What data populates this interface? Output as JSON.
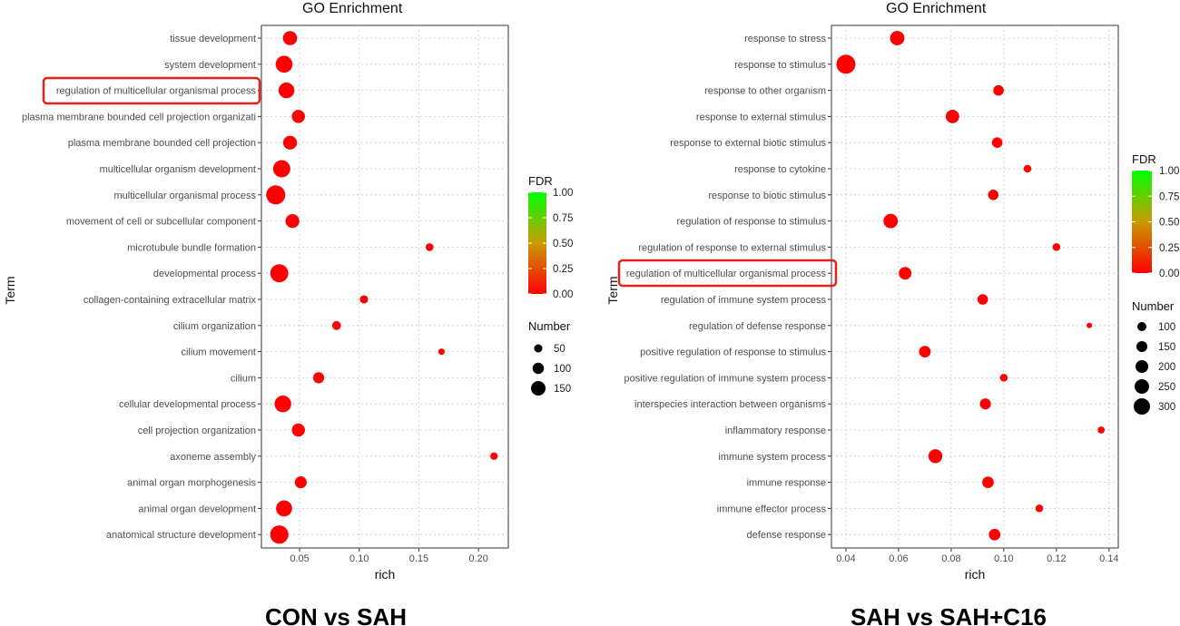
{
  "chart_data": [
    {
      "type": "scatter",
      "title": "GO Enrichment",
      "caption": "CON vs SAH",
      "xlabel": "rich",
      "ylabel": "Term",
      "xlim": [
        0.018,
        0.225
      ],
      "xticks": [
        0.05,
        0.1,
        0.15,
        0.2
      ],
      "xtick_labels": [
        "0.05",
        "0.10",
        "0.15",
        "0.20"
      ],
      "grid": true,
      "color_legend": {
        "title": "FDR",
        "ticks": [
          "1.00",
          "0.75",
          "0.50",
          "0.25",
          "0.00"
        ],
        "low_color": "#ff0000",
        "high_color": "#00ff00"
      },
      "size_legend": {
        "title": "Number",
        "values": [
          50,
          100,
          150
        ]
      },
      "highlighted_term": "regulation of multicellular organismal process",
      "highlight_color": "#e8211c",
      "points": [
        {
          "term": "tissue development",
          "rich": 0.042,
          "number": 95,
          "fdr": 0.0
        },
        {
          "term": "system development",
          "rich": 0.037,
          "number": 140,
          "fdr": 0.0
        },
        {
          "term": "regulation of multicellular organismal process",
          "rich": 0.039,
          "number": 120,
          "fdr": 0.0
        },
        {
          "term": "plasma membrane bounded cell projection organizati",
          "rich": 0.049,
          "number": 80,
          "fdr": 0.0
        },
        {
          "term": "plasma membrane bounded cell projection",
          "rich": 0.042,
          "number": 90,
          "fdr": 0.0
        },
        {
          "term": "multicellular organism development",
          "rich": 0.035,
          "number": 145,
          "fdr": 0.0
        },
        {
          "term": "multicellular organismal process",
          "rich": 0.03,
          "number": 180,
          "fdr": 0.0
        },
        {
          "term": "movement of cell or subcellular component",
          "rich": 0.044,
          "number": 90,
          "fdr": 0.0
        },
        {
          "term": "microtubule bundle formation",
          "rich": 0.159,
          "number": 25,
          "fdr": 0.0
        },
        {
          "term": "developmental process",
          "rich": 0.033,
          "number": 160,
          "fdr": 0.0
        },
        {
          "term": "collagen-containing extracellular matrix",
          "rich": 0.104,
          "number": 28,
          "fdr": 0.0
        },
        {
          "term": "cilium organization",
          "rich": 0.081,
          "number": 33,
          "fdr": 0.0
        },
        {
          "term": "cilium movement",
          "rich": 0.169,
          "number": 15,
          "fdr": 0.0
        },
        {
          "term": "cilium",
          "rich": 0.066,
          "number": 55,
          "fdr": 0.0
        },
        {
          "term": "cellular developmental process",
          "rich": 0.036,
          "number": 135,
          "fdr": 0.0
        },
        {
          "term": "cell projection organization",
          "rich": 0.049,
          "number": 80,
          "fdr": 0.0
        },
        {
          "term": "axoneme assembly",
          "rich": 0.213,
          "number": 22,
          "fdr": 0.0
        },
        {
          "term": "animal organ morphogenesis",
          "rich": 0.051,
          "number": 65,
          "fdr": 0.0
        },
        {
          "term": "animal organ development",
          "rich": 0.037,
          "number": 125,
          "fdr": 0.0
        },
        {
          "term": "anatomical structure development",
          "rich": 0.033,
          "number": 165,
          "fdr": 0.0
        }
      ]
    },
    {
      "type": "scatter",
      "title": "GO Enrichment",
      "caption": "SAH  vs SAH+C16",
      "xlabel": "rich",
      "ylabel": "Term",
      "xlim": [
        0.0345,
        0.1435
      ],
      "xticks": [
        0.04,
        0.06,
        0.08,
        0.1,
        0.12,
        0.14
      ],
      "xtick_labels": [
        "0.04",
        "0.06",
        "0.08",
        "0.10",
        "0.12",
        "0.14"
      ],
      "grid": true,
      "color_legend": {
        "title": "FDR",
        "ticks": [
          "1.00",
          "0.75",
          "0.50",
          "0.25",
          "0.00"
        ],
        "low_color": "#ff0000",
        "high_color": "#00ff00"
      },
      "size_legend": {
        "title": "Number",
        "values": [
          100,
          150,
          200,
          250,
          300
        ]
      },
      "highlighted_term": "regulation of multicellular organismal process",
      "highlight_color": "#e8211c",
      "points": [
        {
          "term": "response to stress",
          "rich": 0.0595,
          "number": 210,
          "fdr": 0.0
        },
        {
          "term": "response to stimulus",
          "rich": 0.04,
          "number": 330,
          "fdr": 0.0
        },
        {
          "term": "response to other organism",
          "rich": 0.098,
          "number": 130,
          "fdr": 0.0
        },
        {
          "term": "response to external stimulus",
          "rich": 0.0805,
          "number": 190,
          "fdr": 0.0
        },
        {
          "term": "response to external biotic stimulus",
          "rich": 0.0975,
          "number": 130,
          "fdr": 0.0
        },
        {
          "term": "response to cytokine",
          "rich": 0.109,
          "number": 85,
          "fdr": 0.0
        },
        {
          "term": "response to biotic stimulus",
          "rich": 0.096,
          "number": 130,
          "fdr": 0.0
        },
        {
          "term": "regulation of response to stimulus",
          "rich": 0.057,
          "number": 210,
          "fdr": 0.0
        },
        {
          "term": "regulation of response to external stimulus",
          "rich": 0.12,
          "number": 85,
          "fdr": 0.0
        },
        {
          "term": "regulation of multicellular organismal process",
          "rich": 0.0625,
          "number": 170,
          "fdr": 0.0
        },
        {
          "term": "regulation of immune system process",
          "rich": 0.092,
          "number": 130,
          "fdr": 0.0
        },
        {
          "term": "regulation of defense response",
          "rich": 0.1325,
          "number": 55,
          "fdr": 0.0
        },
        {
          "term": "positive regulation of response to stimulus",
          "rich": 0.07,
          "number": 150,
          "fdr": 0.0
        },
        {
          "term": "positive regulation of immune system process",
          "rich": 0.1,
          "number": 85,
          "fdr": 0.0
        },
        {
          "term": "interspecies interaction between organisms",
          "rich": 0.093,
          "number": 140,
          "fdr": 0.0
        },
        {
          "term": "inflammatory response",
          "rich": 0.137,
          "number": 75,
          "fdr": 0.0
        },
        {
          "term": "immune system process",
          "rich": 0.074,
          "number": 200,
          "fdr": 0.0
        },
        {
          "term": "immune response",
          "rich": 0.094,
          "number": 150,
          "fdr": 0.0
        },
        {
          "term": "immune effector process",
          "rich": 0.1135,
          "number": 85,
          "fdr": 0.0
        },
        {
          "term": "defense response",
          "rich": 0.0965,
          "number": 150,
          "fdr": 0.0
        }
      ]
    }
  ]
}
